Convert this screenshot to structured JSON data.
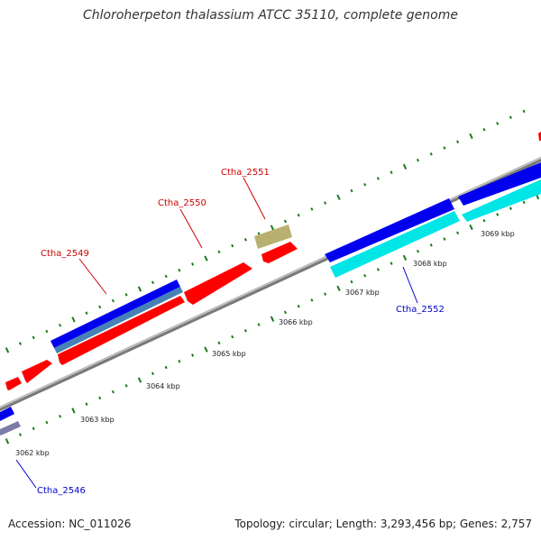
{
  "title": "Chloroherpeton thalassium ATCC 35110, complete genome",
  "footer": {
    "accession": "Accession: NC_011026",
    "summary": "Topology: circular; Length: 3,293,456 bp; Genes: 2,757"
  },
  "colors": {
    "forward_gene": "#ff0000",
    "reverse_gene": "#0000ee",
    "forward_cds": "#ff0000",
    "reverse_cds_light": "#00e5e5",
    "reverse_cds_steel": "#4682b4",
    "rna": "#b8b070",
    "backbone": "#888888",
    "tick": "#1a7a1a",
    "label_forward": "#cc0000",
    "label_reverse": "#0000cc"
  },
  "scale_labels": [
    "3062 kbp",
    "3063 kbp",
    "3064 kbp",
    "3065 kbp",
    "3066 kbp",
    "3067 kbp",
    "3068 kbp",
    "3069 kbp"
  ],
  "gene_labels": [
    {
      "name": "Ctha_2546",
      "strand": "reverse"
    },
    {
      "name": "Ctha_2549",
      "strand": "forward"
    },
    {
      "name": "Ctha_2550",
      "strand": "forward"
    },
    {
      "name": "Ctha_2551",
      "strand": "forward"
    },
    {
      "name": "Ctha_2552",
      "strand": "reverse"
    }
  ]
}
